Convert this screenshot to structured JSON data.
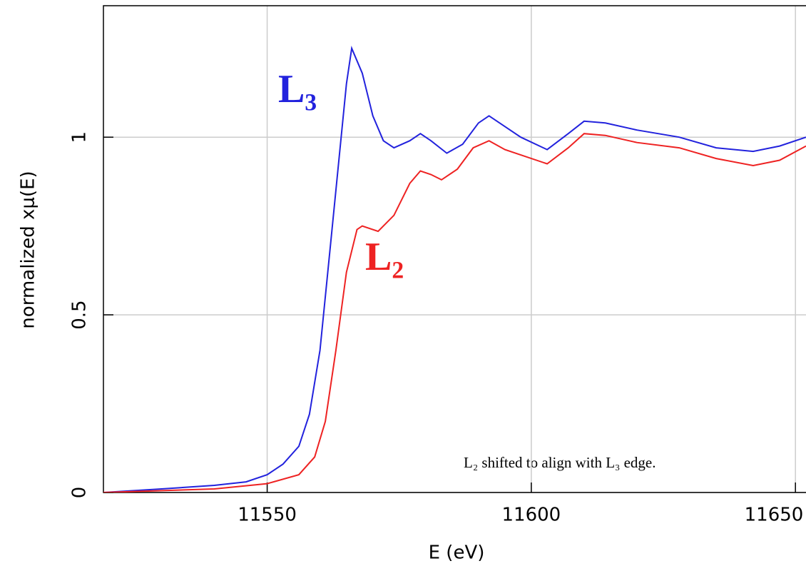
{
  "chart_data": {
    "type": "line",
    "xlabel": "E (eV)",
    "ylabel": "normalized xμ(E)",
    "annotation": "L₂ shifted to align with L₃ edge.",
    "xlim": [
      11519,
      11652
    ],
    "xticks": [
      11550,
      11600,
      11650
    ],
    "ylim": [
      0,
      1.37
    ],
    "yticks": [
      0,
      0.5,
      1
    ],
    "grid": true,
    "series": [
      {
        "name": "L₃",
        "color": "#2222dd",
        "x": [
          11519,
          11530,
          11540,
          11546,
          11550,
          11553,
          11556,
          11558,
          11560,
          11562,
          11564,
          11565,
          11566,
          11568,
          11570,
          11572,
          11574,
          11577,
          11579,
          11581,
          11584,
          11587,
          11590,
          11592,
          11595,
          11598,
          11603,
          11607,
          11610,
          11614,
          11620,
          11628,
          11635,
          11642,
          11647,
          11652
        ],
        "values": [
          0,
          0.01,
          0.02,
          0.03,
          0.05,
          0.08,
          0.13,
          0.22,
          0.4,
          0.7,
          1.0,
          1.15,
          1.25,
          1.18,
          1.06,
          0.99,
          0.97,
          0.99,
          1.01,
          0.99,
          0.955,
          0.98,
          1.04,
          1.06,
          1.03,
          1.0,
          0.965,
          1.01,
          1.045,
          1.04,
          1.02,
          1.0,
          0.97,
          0.96,
          0.975,
          1.0
        ]
      },
      {
        "name": "L₂",
        "color": "#ee2222",
        "x": [
          11519,
          11540,
          11550,
          11556,
          11559,
          11561,
          11563,
          11565,
          11567,
          11568,
          11571,
          11574,
          11577,
          11579,
          11581,
          11583,
          11586,
          11589,
          11592,
          11595,
          11598,
          11603,
          11607,
          11610,
          11614,
          11620,
          11628,
          11635,
          11642,
          11647,
          11652
        ],
        "values": [
          0,
          0.01,
          0.025,
          0.05,
          0.1,
          0.2,
          0.4,
          0.62,
          0.74,
          0.75,
          0.735,
          0.78,
          0.87,
          0.905,
          0.895,
          0.88,
          0.91,
          0.97,
          0.99,
          0.965,
          0.95,
          0.925,
          0.97,
          1.01,
          1.005,
          0.985,
          0.97,
          0.94,
          0.92,
          0.935,
          0.975
        ]
      }
    ]
  }
}
